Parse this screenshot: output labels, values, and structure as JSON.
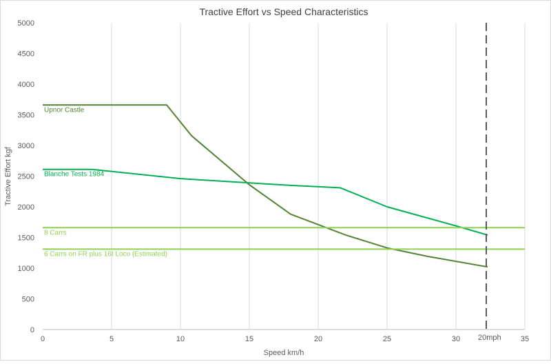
{
  "chart_data": {
    "type": "line",
    "title": "Tractive Effort vs Speed Characteristics",
    "xlabel": "Speed km/h",
    "ylabel": "Tractive Effort kgf",
    "xlim": [
      0,
      35
    ],
    "ylim": [
      0,
      5000
    ],
    "xticks": [
      0,
      5,
      10,
      15,
      20,
      25,
      30,
      35
    ],
    "yticks": [
      0,
      500,
      1000,
      1500,
      2000,
      2500,
      3000,
      3500,
      4000,
      4500,
      5000
    ],
    "grid": "vertical",
    "legend": "none",
    "series": [
      {
        "name": "Upnor Castle",
        "color": "#548235",
        "x": [
          0,
          9,
          10.8,
          15,
          18,
          22,
          25,
          28,
          32.3
        ],
        "y": [
          3660,
          3660,
          3160,
          2360,
          1880,
          1540,
          1330,
          1190,
          1020
        ]
      },
      {
        "name": "Blanche Tests 1984",
        "color": "#00b050",
        "x": [
          0,
          3.6,
          10,
          15,
          18,
          21.6,
          25,
          30,
          32.3
        ],
        "y": [
          2610,
          2610,
          2460,
          2390,
          2350,
          2310,
          2000,
          1690,
          1540
        ]
      },
      {
        "name": "8 Carrs",
        "color": "#92d050",
        "x": [
          0,
          35
        ],
        "y": [
          1660,
          1660
        ]
      },
      {
        "name": "6 Carrs on FR plus 16t Loco (Estimated)",
        "color": "#92d050",
        "x": [
          0,
          35
        ],
        "y": [
          1310,
          1310
        ]
      }
    ],
    "annotations": [
      {
        "label": "20mph",
        "x": 32.2,
        "style": "dashed vertical line",
        "color": "#595959"
      }
    ]
  }
}
